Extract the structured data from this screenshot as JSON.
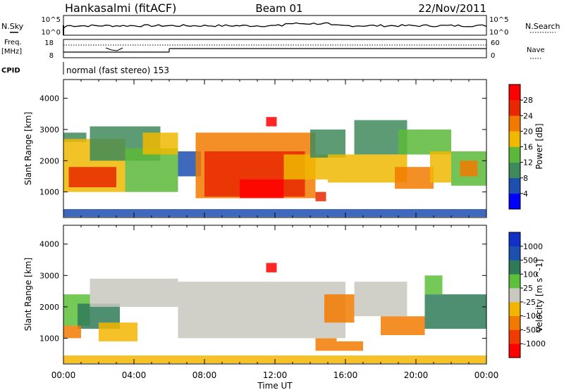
{
  "header": {
    "station": "Hankasalmi (fitACF)",
    "beam": "Beam 01",
    "date": "22/Nov/2011"
  },
  "noise_panel": {
    "left_label": "N.Sky",
    "left_ticks": [
      "10^5",
      "10^0"
    ],
    "right_ticks": [
      "10^5",
      "10^0"
    ],
    "right_label": "N.Search"
  },
  "freq_panel": {
    "left_label_1": "Freq.",
    "left_label_2": "[MHz]",
    "left_ticks": [
      "18",
      "8"
    ],
    "right_ticks": [
      "60",
      "0"
    ],
    "right_label": "Nave"
  },
  "cpid": {
    "label": "CPID",
    "mode_text": "normal (fast stereo) 153"
  },
  "x_axis": {
    "label": "Time UT",
    "ticks": [
      "00:00",
      "04:00",
      "08:00",
      "12:00",
      "16:00",
      "20:00",
      "00:00"
    ],
    "range_hours": [
      0,
      24
    ]
  },
  "chart_data": [
    {
      "type": "heatmap",
      "quantity": "Power",
      "ylabel": "Slant Range [km]",
      "yticks": [
        "1000",
        "2000",
        "3000",
        "4000"
      ],
      "ylim": [
        180,
        4600
      ],
      "colorbar_label": "Power [dB]",
      "colorbar_ticks": [
        "4",
        "8",
        "12",
        "16",
        "20",
        "24",
        "28"
      ],
      "colorbar_range": [
        0,
        32
      ],
      "colors": [
        "#0000ff",
        "#1c4fb0",
        "#3f8a5a",
        "#5cb83a",
        "#f0b800",
        "#f27a00",
        "#e82800",
        "#ff0000"
      ],
      "regions": [
        {
          "t0": 0.0,
          "t1": 1.3,
          "r0": 2600,
          "r1": 2900,
          "level": 2
        },
        {
          "t0": 0.0,
          "t1": 3.5,
          "r0": 1000,
          "r1": 2700,
          "level": 4
        },
        {
          "t0": 0.3,
          "t1": 3.0,
          "r0": 1150,
          "r1": 1800,
          "level": 6
        },
        {
          "t0": 1.5,
          "t1": 5.5,
          "r0": 2000,
          "r1": 3100,
          "level": 2
        },
        {
          "t0": 3.5,
          "t1": 6.5,
          "r0": 1000,
          "r1": 2400,
          "level": 3
        },
        {
          "t0": 4.5,
          "t1": 6.5,
          "r0": 2200,
          "r1": 2900,
          "level": 4
        },
        {
          "t0": 6.5,
          "t1": 7.8,
          "r0": 1500,
          "r1": 2300,
          "level": 1
        },
        {
          "t0": 7.5,
          "t1": 14.3,
          "r0": 800,
          "r1": 2900,
          "level": 5
        },
        {
          "t0": 8.0,
          "t1": 13.7,
          "r0": 850,
          "r1": 2300,
          "level": 6
        },
        {
          "t0": 10.0,
          "t1": 12.5,
          "r0": 800,
          "r1": 1400,
          "level": 7
        },
        {
          "t0": 12.5,
          "t1": 15.0,
          "r0": 1400,
          "r1": 2200,
          "level": 4
        },
        {
          "t0": 14.0,
          "t1": 16.0,
          "r0": 2100,
          "r1": 3000,
          "level": 2
        },
        {
          "t0": 14.3,
          "t1": 14.9,
          "r0": 700,
          "r1": 1000,
          "level": 6
        },
        {
          "t0": 15.0,
          "t1": 19.5,
          "r0": 1300,
          "r1": 2200,
          "level": 4
        },
        {
          "t0": 16.5,
          "t1": 19.5,
          "r0": 2200,
          "r1": 3300,
          "level": 2
        },
        {
          "t0": 18.8,
          "t1": 21.0,
          "r0": 1100,
          "r1": 1800,
          "level": 5
        },
        {
          "t0": 19.0,
          "t1": 22.0,
          "r0": 2200,
          "r1": 3000,
          "level": 3
        },
        {
          "t0": 20.8,
          "t1": 22.0,
          "r0": 1300,
          "r1": 2300,
          "level": 4
        },
        {
          "t0": 22.0,
          "t1": 24.0,
          "r0": 1200,
          "r1": 2300,
          "level": 3
        },
        {
          "t0": 22.5,
          "t1": 23.5,
          "r0": 1500,
          "r1": 2000,
          "level": 5
        },
        {
          "t0": 11.5,
          "t1": 12.1,
          "r0": 3100,
          "r1": 3400,
          "level": 7
        },
        {
          "t0": 0.0,
          "t1": 24.0,
          "r0": 200,
          "r1": 450,
          "level": 1
        }
      ]
    },
    {
      "type": "heatmap",
      "quantity": "Velocity",
      "ylabel": "Slant Range [km]",
      "yticks": [
        "1000",
        "2000",
        "3000",
        "4000"
      ],
      "ylim": [
        180,
        4600
      ],
      "colorbar_label": "Velocity [m s^-1]",
      "colorbar_ticks": [
        "1000",
        "500",
        "100",
        "25",
        "-25",
        "-100",
        "-500",
        "-1000"
      ],
      "colorbar_range": [
        -1250,
        1250
      ],
      "colors": [
        "#ff0000",
        "#f03c00",
        "#f27a00",
        "#f3b600",
        "#c8c8c0",
        "#5cc03a",
        "#2f7a58",
        "#1c4fb0",
        "#1030c8"
      ],
      "regions": [
        {
          "t0": 0.0,
          "t1": 1.5,
          "r0": 1400,
          "r1": 2400,
          "level": 5
        },
        {
          "t0": 0.8,
          "t1": 3.2,
          "r0": 1300,
          "r1": 2100,
          "level": 6
        },
        {
          "t0": 2.0,
          "t1": 4.2,
          "r0": 900,
          "r1": 1500,
          "level": 3
        },
        {
          "t0": 0.0,
          "t1": 1.0,
          "r0": 1000,
          "r1": 1400,
          "level": 2
        },
        {
          "t0": 1.5,
          "t1": 6.5,
          "r0": 2000,
          "r1": 2900,
          "level": 4
        },
        {
          "t0": 6.5,
          "t1": 16.0,
          "r0": 1000,
          "r1": 2800,
          "level": 4
        },
        {
          "t0": 14.3,
          "t1": 15.5,
          "r0": 600,
          "r1": 1000,
          "level": 2
        },
        {
          "t0": 15.5,
          "t1": 17.0,
          "r0": 600,
          "r1": 900,
          "level": 2
        },
        {
          "t0": 14.8,
          "t1": 16.5,
          "r0": 1500,
          "r1": 2400,
          "level": 2
        },
        {
          "t0": 16.5,
          "t1": 19.5,
          "r0": 1700,
          "r1": 2800,
          "level": 4
        },
        {
          "t0": 18.0,
          "t1": 20.5,
          "r0": 1100,
          "r1": 1700,
          "level": 2
        },
        {
          "t0": 20.5,
          "t1": 22.5,
          "r0": 1300,
          "r1": 2400,
          "level": 6
        },
        {
          "t0": 20.5,
          "t1": 21.5,
          "r0": 2400,
          "r1": 3000,
          "level": 5
        },
        {
          "t0": 22.5,
          "t1": 24.0,
          "r0": 1300,
          "r1": 2400,
          "level": 6
        },
        {
          "t0": 11.5,
          "t1": 12.1,
          "r0": 3100,
          "r1": 3400,
          "level": 0
        },
        {
          "t0": 0.0,
          "t1": 24.0,
          "r0": 200,
          "r1": 450,
          "level": 3
        }
      ]
    }
  ]
}
